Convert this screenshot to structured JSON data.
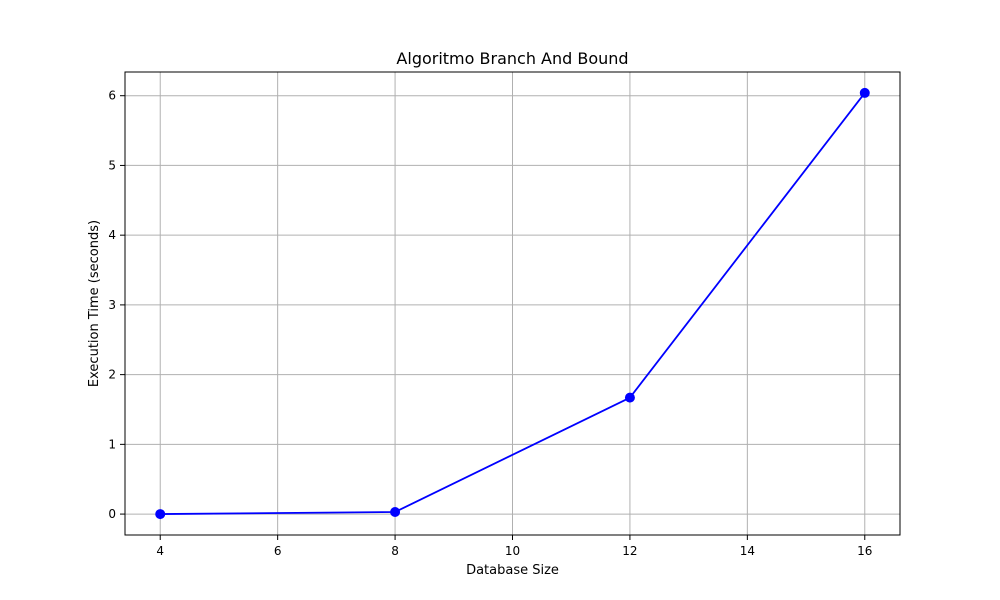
{
  "chart_data": {
    "type": "line",
    "title": "Algoritmo Branch And Bound",
    "xlabel": "Database Size",
    "ylabel": "Execution Time (seconds)",
    "x": [
      4,
      8,
      12,
      16
    ],
    "series": [
      {
        "values": [
          0.0,
          0.03,
          1.67,
          6.04
        ],
        "color": "#0000ff",
        "marker": "circle"
      }
    ],
    "x_ticks": [
      4,
      6,
      8,
      10,
      12,
      14,
      16
    ],
    "y_ticks": [
      0,
      1,
      2,
      3,
      4,
      5,
      6
    ],
    "xlim": [
      3.4,
      16.6
    ],
    "ylim": [
      -0.3,
      6.34
    ],
    "grid": true,
    "grid_color": "#b0b0b0"
  }
}
